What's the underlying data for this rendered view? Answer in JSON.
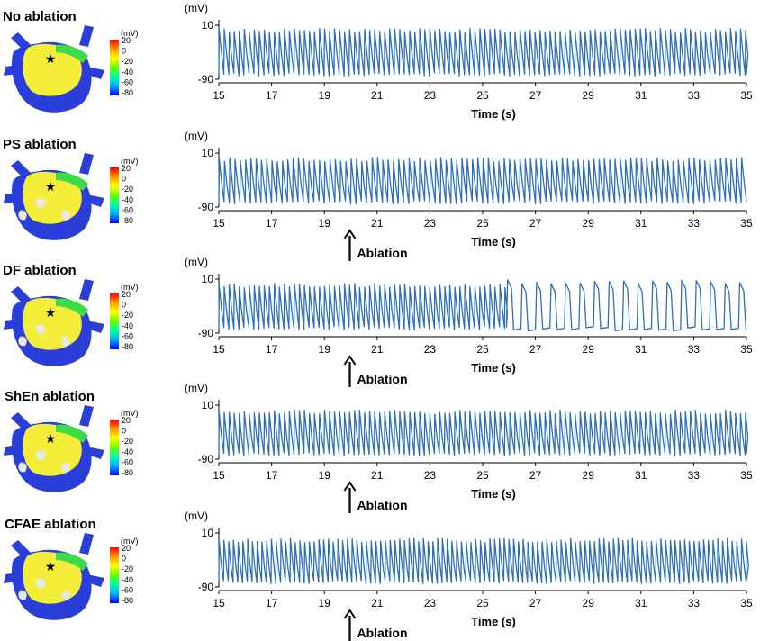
{
  "colors": {
    "trace": "#2e6fb4",
    "axis": "#000000",
    "colorbar": [
      "#ff0000",
      "#ff9900",
      "#ffff00",
      "#66ff00",
      "#00ffaa",
      "#00aaff",
      "#0000ff"
    ],
    "heart_blue": "#2a3fd9",
    "heart_yellow": "#f4ee3a",
    "heart_green": "#3bdc46",
    "heart_scar": "#e8e8e8"
  },
  "colorbar_legend": {
    "unit": "(mV)",
    "ticks": [
      "20",
      "0",
      "-20",
      "-40",
      "-60",
      "-80"
    ]
  },
  "shared_axes": {
    "y_unit": "(mV)",
    "y_ticks": [
      "10",
      "-90"
    ],
    "x_ticks": [
      "15",
      "17",
      "19",
      "21",
      "23",
      "25",
      "27",
      "29",
      "31",
      "33",
      "35"
    ],
    "x_title": "Time (s)"
  },
  "annotation_label": "Ablation",
  "chart_data": [
    {
      "type": "line",
      "title": "No ablation",
      "ylabel": "(mV)",
      "xlabel": "Time (s)",
      "xlim": [
        15,
        35
      ],
      "ylim": [
        -90,
        10
      ],
      "annotation": null,
      "series": [
        {
          "name": "action potential",
          "segments": [
            {
              "from": 15,
              "to": 35,
              "cycle_s": 0.19,
              "peak": 0
            }
          ]
        }
      ]
    },
    {
      "type": "line",
      "title": "PS ablation",
      "ylabel": "(mV)",
      "xlabel": "Time (s)",
      "xlim": [
        15,
        35
      ],
      "ylim": [
        -90,
        10
      ],
      "annotation": {
        "x": 20,
        "text": "Ablation"
      },
      "series": [
        {
          "name": "action potential",
          "segments": [
            {
              "from": 15,
              "to": 35,
              "cycle_s": 0.2,
              "peak": -2
            }
          ]
        }
      ]
    },
    {
      "type": "line",
      "title": "DF ablation",
      "ylabel": "(mV)",
      "xlabel": "Time (s)",
      "xlim": [
        15,
        35
      ],
      "ylim": [
        -90,
        10
      ],
      "annotation": {
        "x": 20,
        "text": "Ablation"
      },
      "series": [
        {
          "name": "action potential",
          "segments": [
            {
              "from": 15,
              "to": 25.9,
              "cycle_s": 0.19,
              "peak": -2
            },
            {
              "from": 25.9,
              "to": 35,
              "cycle_s": 0.55,
              "peak": 5
            }
          ]
        }
      ]
    },
    {
      "type": "line",
      "title": "ShEn ablation",
      "ylabel": "(mV)",
      "xlabel": "Time (s)",
      "xlim": [
        15,
        35
      ],
      "ylim": [
        -90,
        10
      ],
      "annotation": {
        "x": 20,
        "text": "Ablation"
      },
      "series": [
        {
          "name": "action potential",
          "segments": [
            {
              "from": 15,
              "to": 35,
              "cycle_s": 0.19,
              "peak": -3
            }
          ]
        }
      ]
    },
    {
      "type": "line",
      "title": "CFAE ablation",
      "ylabel": "(mV)",
      "xlabel": "Time (s)",
      "xlim": [
        15,
        35
      ],
      "ylim": [
        -90,
        10
      ],
      "annotation": {
        "x": 20,
        "text": "Ablation"
      },
      "series": [
        {
          "name": "action potential",
          "segments": [
            {
              "from": 15,
              "to": 35,
              "cycle_s": 0.18,
              "peak": -4
            }
          ]
        }
      ]
    }
  ]
}
